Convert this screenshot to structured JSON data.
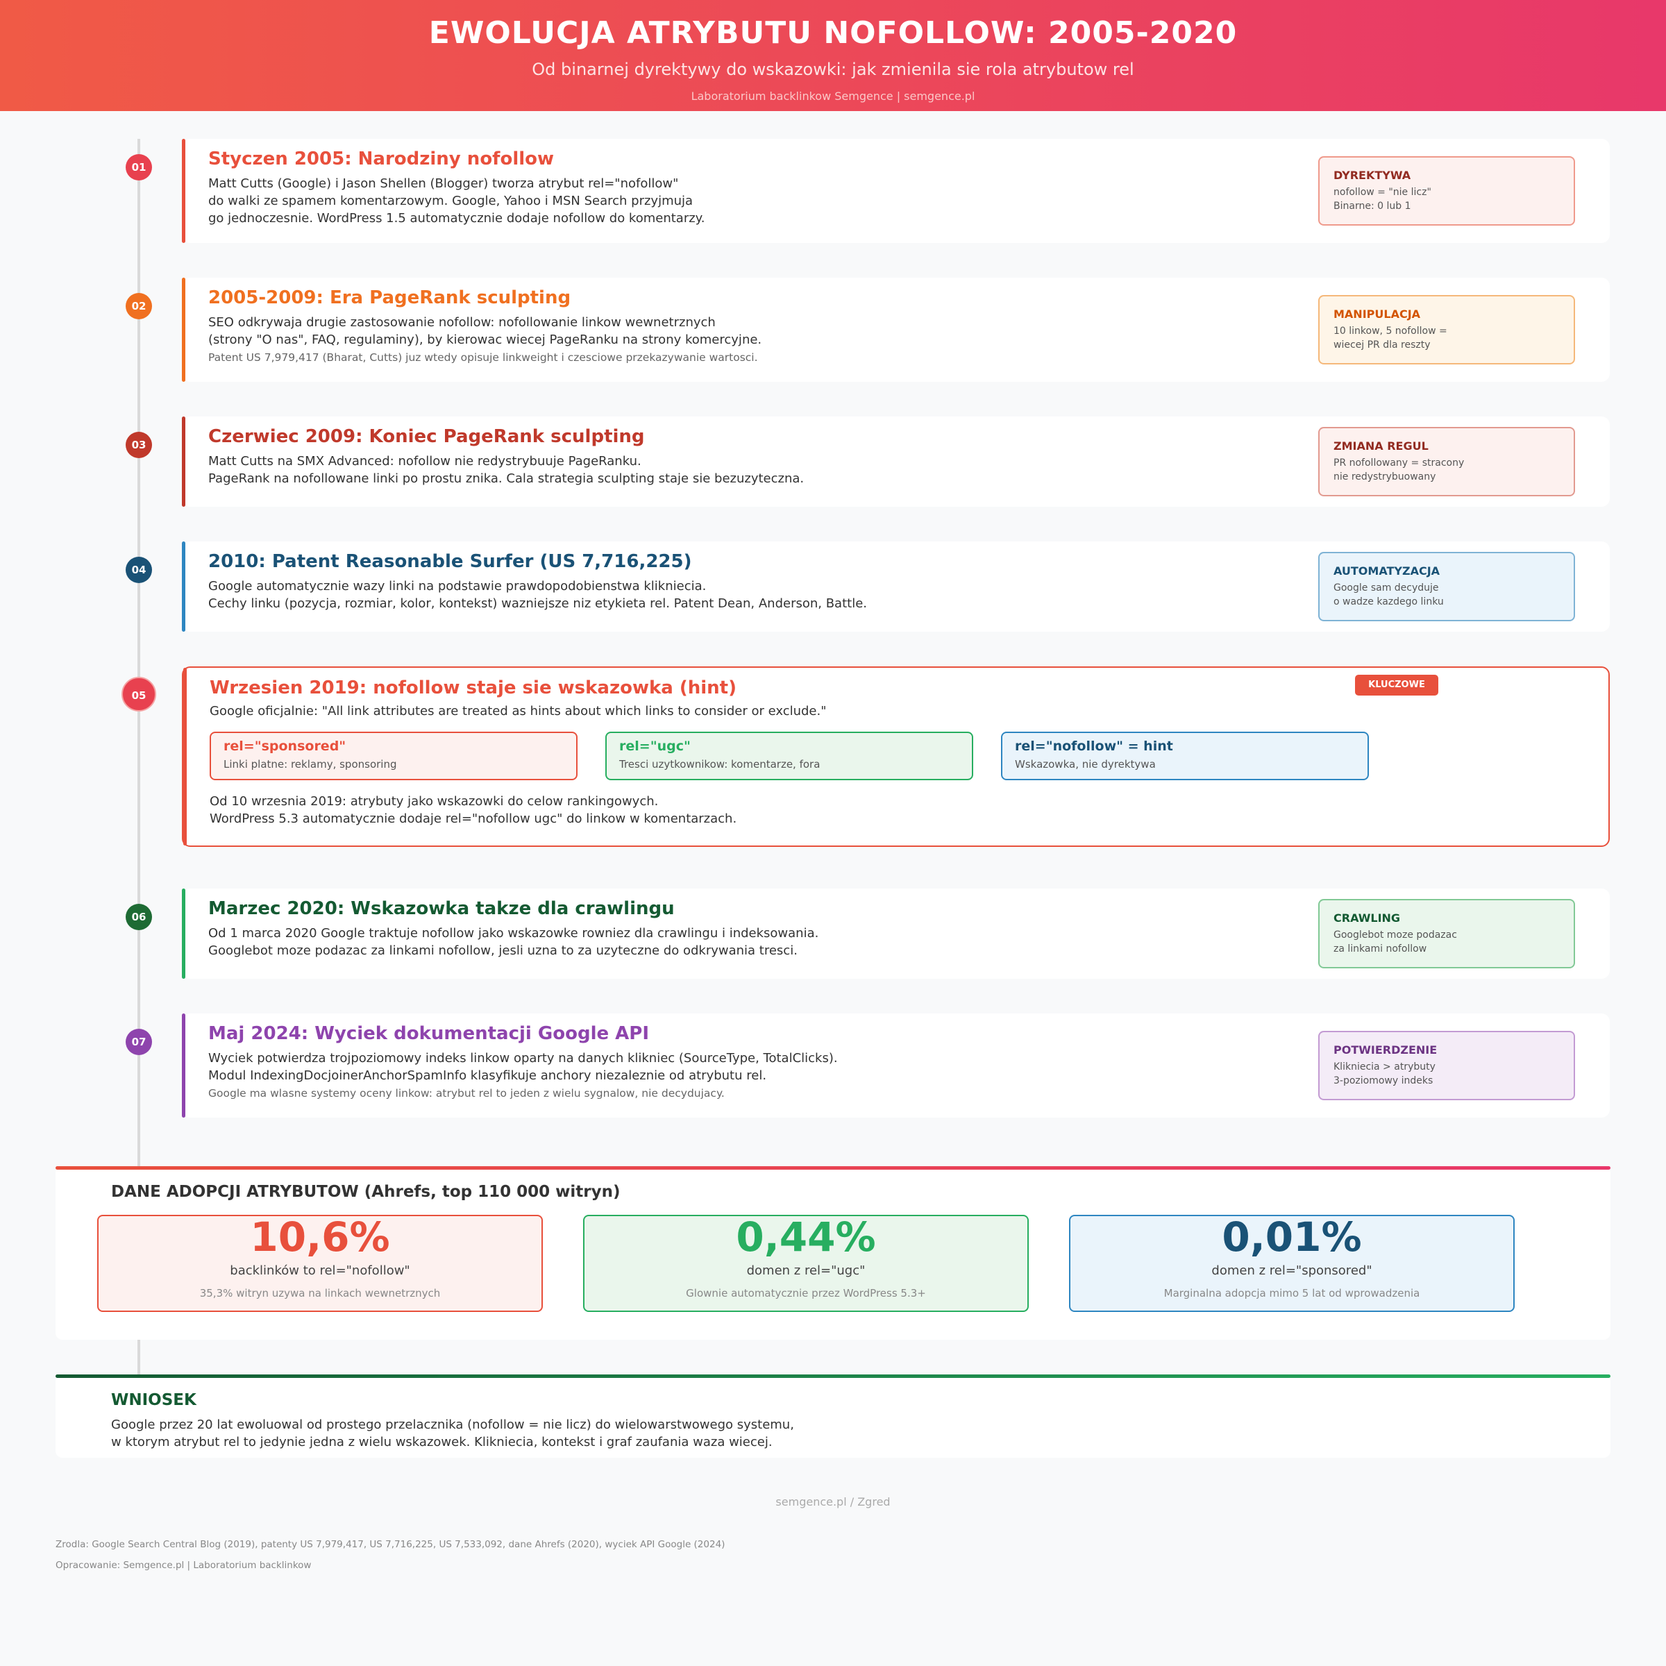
{
  "header": {
    "title": "EWOLUCJA ATRYBUTU NOFOLLOW: 2005-2020",
    "subtitle": "Od binarnej dyrektywy do wskazowki: jak zmienila sie rola atrybutow rel",
    "lab": "Laboratorium backlinkow Semgence | semgence.pl"
  },
  "colors": {
    "red": "#e8503c",
    "orange": "#f07020",
    "darkred": "#c0392b",
    "blue": "#1a5276",
    "green": "#27ae60",
    "darkgreen": "#1e6b34",
    "purple": "#8e44ad"
  },
  "events": [
    {
      "num": "01",
      "title": "Styczen 2005: Narodziny nofollow",
      "lines": [
        "Matt Cutts (Google) i Jason Shellen (Blogger) tworza atrybut rel=\"nofollow\"",
        "do walki ze spamem komentarzowym. Google, Yahoo i MSN Search przyjmuja",
        "go jednoczesnie. WordPress 1.5 automatycznie dodaje nofollow do komentarzy."
      ],
      "badge": {
        "title": "DYREKTYWA",
        "lines": [
          "nofollow = \"nie licz\"",
          "Binarne: 0 lub 1"
        ]
      }
    },
    {
      "num": "02",
      "title": "2005-2009: Era PageRank sculpting",
      "lines": [
        "SEO odkrywaja drugie zastosowanie nofollow: nofollowanie linkow wewnetrznych",
        "(strony \"O nas\", FAQ, regulaminy), by kierowac wiecej PageRanku na strony komercyjne."
      ],
      "note": "Patent US 7,979,417 (Bharat, Cutts) juz wtedy opisuje linkweight i czesciowe przekazywanie wartosci.",
      "badge": {
        "title": "MANIPULACJA",
        "lines": [
          "10 linkow, 5 nofollow =",
          "wiecej PR dla reszty"
        ]
      }
    },
    {
      "num": "03",
      "title": "Czerwiec 2009: Koniec PageRank sculpting",
      "lines": [
        "Matt Cutts na SMX Advanced: nofollow nie redystrybuuje PageRanku.",
        "PageRank na nofollowane linki po prostu znika. Cala strategia sculpting staje sie bezuzyteczna."
      ],
      "badge": {
        "title": "ZMIANA REGUL",
        "lines": [
          "PR nofollowany = stracony",
          "nie redystrybuowany"
        ]
      }
    },
    {
      "num": "04",
      "title": "2010: Patent Reasonable Surfer (US 7,716,225)",
      "lines": [
        "Google automatycznie wazy linki na podstawie prawdopodobienstwa klikniecia.",
        "Cechy linku (pozycja, rozmiar, kolor, kontekst) wazniejsze niz etykieta rel. Patent Dean, Anderson, Battle."
      ],
      "badge": {
        "title": "AUTOMATYZACJA",
        "lines": [
          "Google sam decyduje",
          "o wadze kazdego linku"
        ]
      }
    },
    {
      "num": "05",
      "title": "Wrzesien 2019: nofollow staje sie wskazowka (hint)",
      "key_label": "KLUCZOWE",
      "quote": "Google oficjalnie: \"All link attributes are treated as hints about which links to consider or exclude.\"",
      "rels": [
        {
          "title": "rel=\"sponsored\"",
          "desc": "Linki platne: reklamy, sponsoring"
        },
        {
          "title": "rel=\"ugc\"",
          "desc": "Tresci uzytkownikow: komentarze, fora"
        },
        {
          "title": "rel=\"nofollow\" = hint",
          "desc": "Wskazowka, nie dyrektywa"
        }
      ],
      "lines": [
        "Od 10 wrzesnia 2019: atrybuty jako wskazowki do celow rankingowych.",
        "WordPress 5.3 automatycznie dodaje rel=\"nofollow ugc\" do linkow w komentarzach."
      ]
    },
    {
      "num": "06",
      "title": "Marzec 2020: Wskazowka takze dla crawlingu",
      "lines": [
        "Od 1 marca 2020 Google traktuje nofollow jako wskazowke rowniez dla crawlingu i indeksowania.",
        "Googlebot moze podazac za linkami nofollow, jesli uzna to za uzyteczne do odkrywania tresci."
      ],
      "badge": {
        "title": "CRAWLING",
        "lines": [
          "Googlebot moze podazac",
          "za linkami nofollow"
        ]
      }
    },
    {
      "num": "07",
      "title": "Maj 2024: Wyciek dokumentacji Google API",
      "lines": [
        "Wyciek potwierdza trojpoziomowy indeks linkow oparty na danych klikniec (SourceType, TotalClicks).",
        "Modul IndexingDocjoinerAnchorSpamInfo klasyfikuje anchory niezaleznie od atrybutu rel."
      ],
      "note": "Google ma wlasne systemy oceny linkow: atrybut rel to jeden z wielu sygnalow, nie decydujacy.",
      "badge": {
        "title": "POTWIERDZENIE",
        "lines": [
          "Klikniecia > atrybuty",
          "3-poziomowy indeks"
        ]
      }
    }
  ],
  "adoption": {
    "title": "DANE ADOPCJI ATRYBUTOW (Ahrefs, top 110 000 witryn)",
    "stats": [
      {
        "value": "10,6%",
        "label": "backlinków to rel=\"nofollow\"",
        "desc": "35,3% witryn uzywa na linkach wewnetrznych"
      },
      {
        "value": "0,44%",
        "label": "domen z rel=\"ugc\"",
        "desc": "Glownie automatycznie przez WordPress 5.3+"
      },
      {
        "value": "0,01%",
        "label": "domen z rel=\"sponsored\"",
        "desc": "Marginalna adopcja mimo 5 lat od wprowadzenia"
      }
    ]
  },
  "conclusion": {
    "title": "WNIOSEK",
    "lines": [
      "Google przez 20 lat ewoluowal od prostego przelacznika (nofollow = nie licz) do wielowarstwowego systemu,",
      "w ktorym atrybut rel to jedynie jedna z wielu wskazowek. Klikniecia, kontekst i graf zaufania waza wiecej."
    ]
  },
  "footer": {
    "credit": "semgence.pl / Zgred",
    "sources": "Zrodla: Google Search Central Blog (2019), patenty US 7,979,417, US 7,716,225, US 7,533,092, dane Ahrefs (2020), wyciek API Google (2024)",
    "prepared": "Opracowanie: Semgence.pl | Laboratorium backlinkow"
  }
}
